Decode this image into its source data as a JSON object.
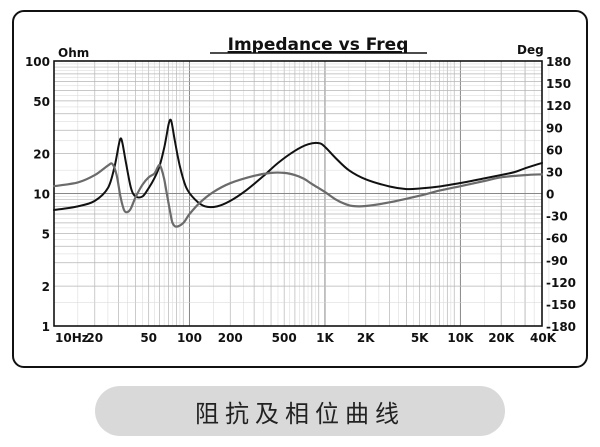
{
  "chart_data": {
    "type": "line",
    "title": "Impedance vs Freq",
    "left_axis_label": "Ohm",
    "right_axis_label": "Deg",
    "x_scale": "log",
    "x_range_hz": [
      10,
      40000
    ],
    "y_left_scale": "log",
    "y_left_range": [
      1,
      100
    ],
    "y_right_range": [
      -180,
      180
    ],
    "grid": true,
    "x_tick_labels": [
      {
        "value": 10,
        "label": "10Hz"
      },
      {
        "value": 20,
        "label": "20"
      },
      {
        "value": 50,
        "label": "50"
      },
      {
        "value": 100,
        "label": "100"
      },
      {
        "value": 200,
        "label": "200"
      },
      {
        "value": 500,
        "label": "500"
      },
      {
        "value": 1000,
        "label": "1K"
      },
      {
        "value": 2000,
        "label": "2K"
      },
      {
        "value": 5000,
        "label": "5K"
      },
      {
        "value": 10000,
        "label": "10K"
      },
      {
        "value": 20000,
        "label": "20K"
      },
      {
        "value": 40000,
        "label": "40K"
      }
    ],
    "y_left_tick_labels": [
      {
        "value": 100,
        "label": "100"
      },
      {
        "value": 50,
        "label": "50"
      },
      {
        "value": 20,
        "label": "20"
      },
      {
        "value": 10,
        "label": "10"
      },
      {
        "value": 5,
        "label": "5"
      },
      {
        "value": 2,
        "label": "2"
      },
      {
        "value": 1,
        "label": "1"
      }
    ],
    "y_right_tick_labels": [
      {
        "value": 180,
        "label": "180"
      },
      {
        "value": 150,
        "label": "150"
      },
      {
        "value": 120,
        "label": "120"
      },
      {
        "value": 90,
        "label": "90"
      },
      {
        "value": 60,
        "label": "60"
      },
      {
        "value": 30,
        "label": "30"
      },
      {
        "value": 0,
        "label": "0"
      },
      {
        "value": -30,
        "label": "-30"
      },
      {
        "value": -60,
        "label": "-60"
      },
      {
        "value": -90,
        "label": "-90"
      },
      {
        "value": -120,
        "label": "-120"
      },
      {
        "value": -150,
        "label": "-150"
      },
      {
        "value": -180,
        "label": "-180"
      }
    ],
    "series": [
      {
        "axis": "left",
        "color": "#111111",
        "points": [
          [
            10,
            7.5
          ],
          [
            15,
            8.0
          ],
          [
            20,
            8.8
          ],
          [
            25,
            11
          ],
          [
            28,
            16
          ],
          [
            30,
            23
          ],
          [
            31,
            26
          ],
          [
            32,
            24
          ],
          [
            34,
            17
          ],
          [
            37,
            11
          ],
          [
            40,
            9.5
          ],
          [
            45,
            9.5
          ],
          [
            50,
            11
          ],
          [
            55,
            13
          ],
          [
            60,
            16
          ],
          [
            65,
            22
          ],
          [
            68,
            28
          ],
          [
            70,
            33
          ],
          [
            72,
            36
          ],
          [
            74,
            34
          ],
          [
            78,
            25
          ],
          [
            85,
            16
          ],
          [
            95,
            11
          ],
          [
            110,
            9
          ],
          [
            130,
            8.0
          ],
          [
            160,
            8.0
          ],
          [
            200,
            8.8
          ],
          [
            260,
            10.5
          ],
          [
            350,
            13.5
          ],
          [
            450,
            17
          ],
          [
            600,
            21
          ],
          [
            750,
            23.5
          ],
          [
            900,
            24
          ],
          [
            1000,
            22.5
          ],
          [
            1200,
            18.5
          ],
          [
            1500,
            15
          ],
          [
            2000,
            12.8
          ],
          [
            3000,
            11.3
          ],
          [
            4000,
            10.8
          ],
          [
            5000,
            10.9
          ],
          [
            7000,
            11.3
          ],
          [
            10000,
            12
          ],
          [
            15000,
            13
          ],
          [
            20000,
            13.8
          ],
          [
            25000,
            14.5
          ],
          [
            30000,
            15.5
          ],
          [
            40000,
            17
          ]
        ]
      },
      {
        "axis": "right",
        "color": "#6b6b6b",
        "points": [
          [
            10,
            10
          ],
          [
            15,
            15
          ],
          [
            20,
            25
          ],
          [
            25,
            38
          ],
          [
            27,
            40
          ],
          [
            29,
            25
          ],
          [
            31,
            -5
          ],
          [
            33,
            -23
          ],
          [
            35,
            -25
          ],
          [
            37,
            -20
          ],
          [
            40,
            -5
          ],
          [
            45,
            12
          ],
          [
            50,
            22
          ],
          [
            55,
            27
          ],
          [
            58,
            35
          ],
          [
            60,
            39
          ],
          [
            62,
            34
          ],
          [
            65,
            20
          ],
          [
            68,
            0
          ],
          [
            72,
            -25
          ],
          [
            75,
            -40
          ],
          [
            80,
            -45
          ],
          [
            90,
            -40
          ],
          [
            100,
            -28
          ],
          [
            120,
            -12
          ],
          [
            150,
            2
          ],
          [
            200,
            14
          ],
          [
            300,
            24
          ],
          [
            400,
            28
          ],
          [
            500,
            28
          ],
          [
            600,
            25
          ],
          [
            700,
            20
          ],
          [
            800,
            13
          ],
          [
            1000,
            2
          ],
          [
            1200,
            -8
          ],
          [
            1400,
            -14
          ],
          [
            1600,
            -17
          ],
          [
            2000,
            -17
          ],
          [
            3000,
            -12
          ],
          [
            5000,
            -3
          ],
          [
            7000,
            4
          ],
          [
            10000,
            10
          ],
          [
            15000,
            17
          ],
          [
            20000,
            22
          ],
          [
            30000,
            25
          ],
          [
            40000,
            26
          ]
        ]
      }
    ]
  },
  "caption": "阻抗及相位曲线"
}
